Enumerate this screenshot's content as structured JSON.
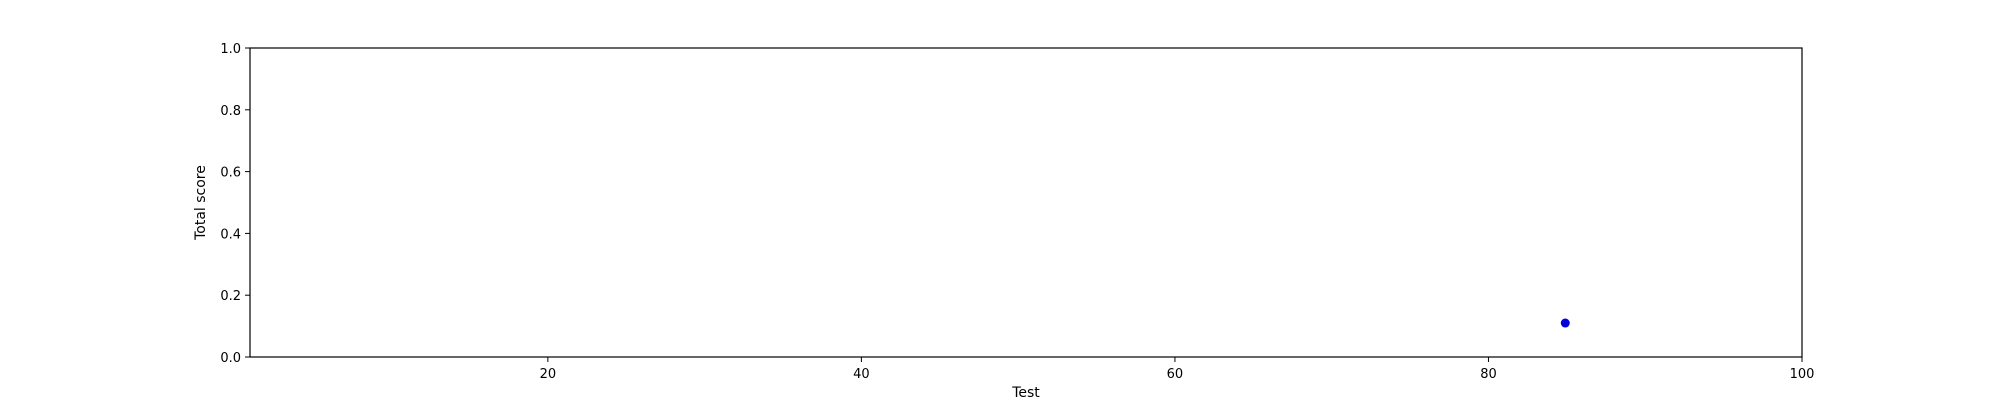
{
  "chart_data": {
    "type": "scatter",
    "title": "",
    "xlabel": "Test",
    "ylabel": "Total score",
    "xlim": [
      1,
      100
    ],
    "ylim": [
      0.0,
      1.0
    ],
    "x_ticks": [
      20,
      40,
      60,
      80,
      100
    ],
    "y_ticks": [
      "0.0",
      "0.2",
      "0.4",
      "0.6",
      "0.8",
      "1.0"
    ],
    "grid": false,
    "legend": false,
    "series": [
      {
        "color": "#0000dd",
        "points": [
          {
            "x": 84.9,
            "y": 0.11
          }
        ]
      }
    ]
  }
}
